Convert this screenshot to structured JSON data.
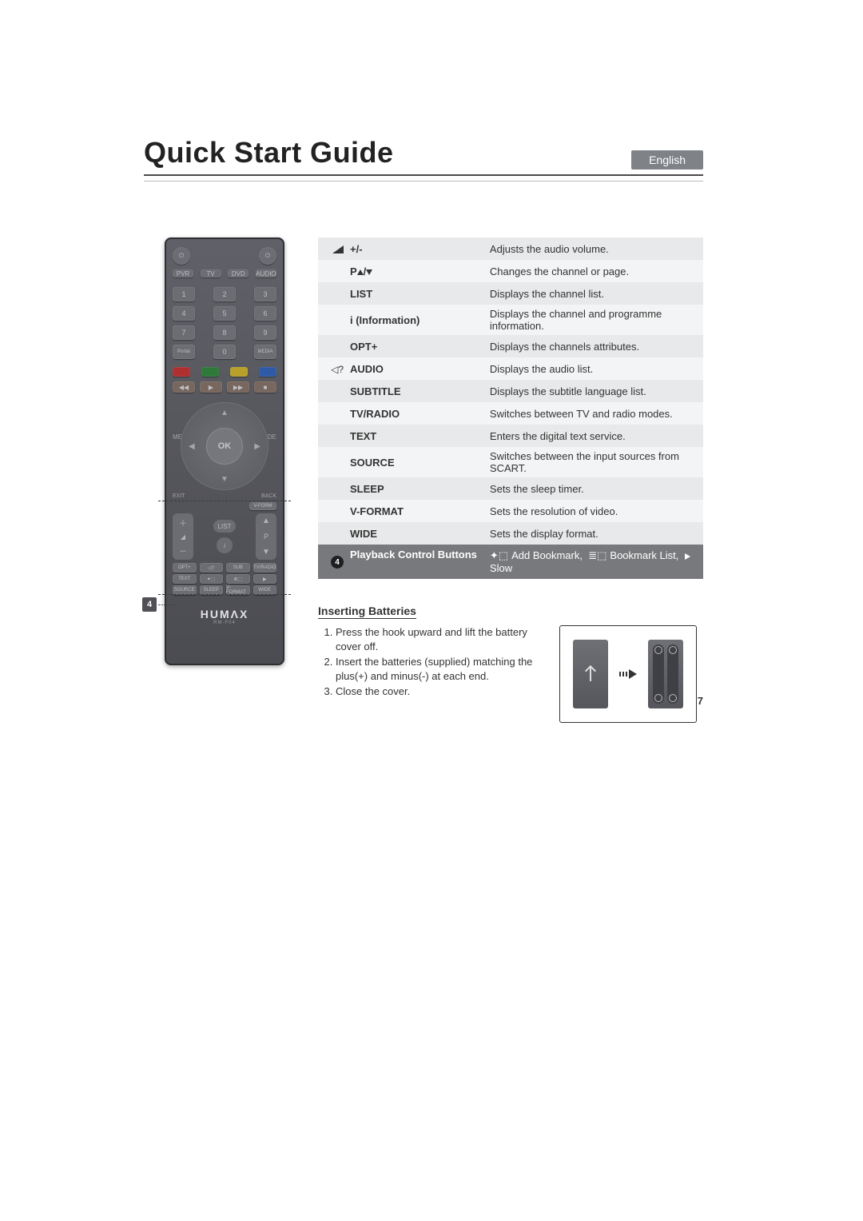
{
  "title": "Quick Start Guide",
  "language_tab": "English",
  "callout_number": "4",
  "remote": {
    "brand": "HUMΛX",
    "model": "RM-F04",
    "ok": "OK",
    "menu_left": "MENU",
    "menu_right": "GUIDE",
    "list_btn": "LIST",
    "vformat_btn": "V-FORM",
    "low_row1": [
      "OPT+",
      "◁?",
      "SUB",
      "TV/RADIO"
    ],
    "low_row2": [
      "TEXT",
      "",
      "",
      ""
    ],
    "low_row3": [
      "SOURCE",
      "SLEEP",
      "V-FORMAT",
      "WIDE"
    ]
  },
  "rows": [
    {
      "icon": "vol",
      "label": "+/-",
      "desc": "Adjusts the audio volume."
    },
    {
      "icon": "",
      "label_html": "P▲/▼",
      "desc": "Changes the channel or page."
    },
    {
      "icon": "",
      "label": "LIST",
      "desc": "Displays the channel list."
    },
    {
      "icon": "",
      "label": "i (Information)",
      "desc": "Displays the channel and programme information."
    },
    {
      "icon": "",
      "label": "OPT+",
      "desc": "Displays the channels attributes."
    },
    {
      "icon": "mute?",
      "label": "AUDIO",
      "desc": "Displays the audio list."
    },
    {
      "icon": "",
      "label": "SUBTITLE",
      "desc": "Displays the subtitle language list."
    },
    {
      "icon": "",
      "label": "TV/RADIO",
      "desc": "Switches between TV and radio modes."
    },
    {
      "icon": "",
      "label": "TEXT",
      "desc": "Enters the digital text service."
    },
    {
      "icon": "",
      "label": "SOURCE",
      "desc": "Switches between the input sources from SCART."
    },
    {
      "icon": "",
      "label": "SLEEP",
      "desc": "Sets the sleep timer."
    },
    {
      "icon": "",
      "label": "V-FORMAT",
      "desc": "Sets the resolution of video."
    },
    {
      "icon": "",
      "label": "WIDE",
      "desc": "Sets the display format."
    }
  ],
  "last_row": {
    "badge": "4",
    "label": "Playback Control Buttons",
    "desc_parts": {
      "add": "Add Bookmark,",
      "list": "Bookmark List,",
      "slow": "Slow"
    }
  },
  "batteries": {
    "heading": "Inserting Batteries",
    "steps": [
      "Press the hook upward and lift the battery cover off.",
      "Insert the batteries (supplied) matching the plus(+) and minus(-) at each end.",
      "Close the cover."
    ]
  },
  "page_number": "7",
  "colors": {
    "row_grey": "#e8e9ea",
    "row_grey_alt": "#f3f4f5",
    "dark_row": "#78797c",
    "badge": "#505055",
    "english_tab": "#7f8388"
  }
}
